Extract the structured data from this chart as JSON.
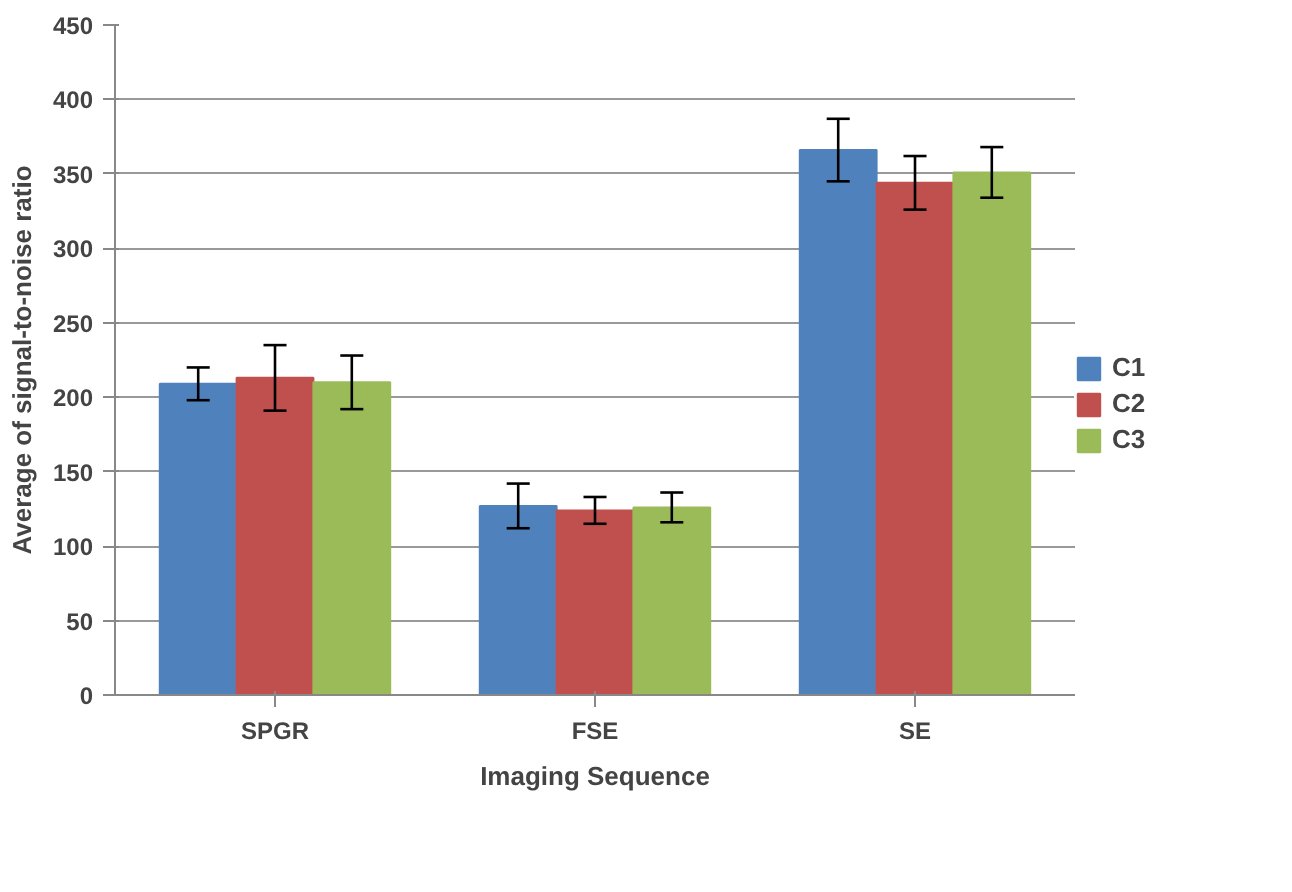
{
  "chart_data": {
    "type": "bar",
    "xlabel": "Imaging Sequence",
    "ylabel": "Average of signal-to-noise ratio",
    "categories": [
      "SPGR",
      "FSE",
      "SE"
    ],
    "series": [
      {
        "name": "C1",
        "color": "#4f81bd",
        "values": [
          209,
          127,
          366
        ],
        "errors": [
          11,
          15,
          21
        ]
      },
      {
        "name": "C2",
        "color": "#c0504d",
        "values": [
          213,
          124,
          344
        ],
        "errors": [
          22,
          9,
          18
        ]
      },
      {
        "name": "C3",
        "color": "#9bbb59",
        "values": [
          210,
          126,
          351
        ],
        "errors": [
          18,
          10,
          17
        ]
      }
    ],
    "ylim": [
      0,
      450
    ],
    "yticks": [
      0,
      50,
      100,
      150,
      200,
      250,
      300,
      350,
      400,
      450
    ],
    "grid": "y",
    "legend": "right"
  }
}
